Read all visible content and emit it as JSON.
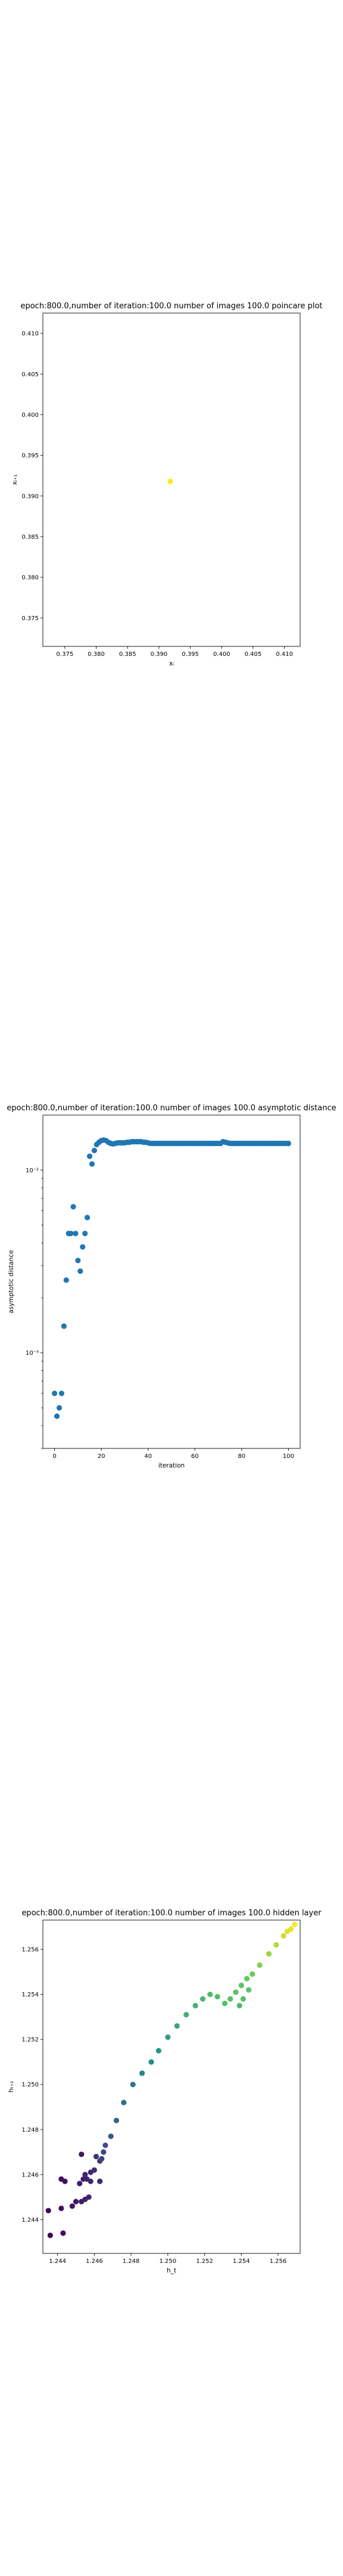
{
  "chart_data": [
    {
      "type": "scatter",
      "title": "epoch:800.0,number of iteration:100.0 number of images 100.0 poincare plot",
      "xlabel": "xᵢ",
      "ylabel": "xᵢ₊₁",
      "xlim": [
        0.3715,
        0.4125
      ],
      "ylim": [
        0.3715,
        0.4125
      ],
      "xticks": [
        "0.375",
        "0.380",
        "0.385",
        "0.390",
        "0.395",
        "0.400",
        "0.405",
        "0.410"
      ],
      "yticks": [
        "0.375",
        "0.380",
        "0.385",
        "0.390",
        "0.395",
        "0.400",
        "0.405",
        "0.410"
      ],
      "grid": false,
      "points": [
        {
          "x": 0.3918,
          "y": 0.3918,
          "color": "#fde725"
        }
      ]
    },
    {
      "type": "scatter",
      "title": "epoch:800.0,number of iteration:100.0  number of images 100.0 asymptotic distance",
      "xlabel": "iteration",
      "ylabel": "asymptotic distance",
      "yscale": "log",
      "xlim": [
        -5,
        105
      ],
      "ylim": [
        0.0003,
        0.02
      ],
      "xticks": [
        "0",
        "20",
        "40",
        "60",
        "80",
        "100"
      ],
      "yticks": [
        "10⁻³",
        "10⁻²"
      ],
      "ytick_values": [
        0.001,
        0.01
      ],
      "grid": false,
      "color": "#1f77b4",
      "x": [
        0,
        1,
        2,
        3,
        4,
        5,
        6,
        7,
        8,
        9,
        10,
        11,
        12,
        13,
        14,
        15,
        16,
        17,
        18,
        19,
        20,
        21,
        22,
        23,
        24,
        25,
        26,
        27,
        28,
        29,
        30,
        31,
        32,
        33,
        34,
        35,
        36,
        37,
        38,
        39,
        40,
        41,
        42,
        43,
        44,
        45,
        46,
        47,
        48,
        49,
        50,
        51,
        52,
        53,
        54,
        55,
        56,
        57,
        58,
        59,
        60,
        61,
        62,
        63,
        64,
        65,
        66,
        67,
        68,
        69,
        70,
        71,
        72,
        73,
        74,
        75,
        76,
        77,
        78,
        79,
        80,
        81,
        82,
        83,
        84,
        85,
        86,
        87,
        88,
        89,
        90,
        91,
        92,
        93,
        94,
        95,
        96,
        97,
        98,
        99,
        100
      ],
      "y": [
        0.0006,
        0.00045,
        0.0005,
        0.0006,
        0.0014,
        0.0025,
        0.0045,
        0.0045,
        0.0063,
        0.0045,
        0.0032,
        0.0028,
        0.0038,
        0.0045,
        0.0055,
        0.0119,
        0.0108,
        0.0128,
        0.0138,
        0.0142,
        0.0145,
        0.0146,
        0.0145,
        0.0142,
        0.014,
        0.0139,
        0.014,
        0.0141,
        0.0141,
        0.0141,
        0.0141,
        0.0142,
        0.0142,
        0.0143,
        0.0143,
        0.0143,
        0.0143,
        0.0143,
        0.0142,
        0.0142,
        0.0141,
        0.014,
        0.014,
        0.014,
        0.014,
        0.014,
        0.014,
        0.014,
        0.014,
        0.014,
        0.014,
        0.014,
        0.014,
        0.014,
        0.014,
        0.014,
        0.014,
        0.014,
        0.014,
        0.014,
        0.014,
        0.014,
        0.014,
        0.014,
        0.014,
        0.014,
        0.014,
        0.014,
        0.014,
        0.014,
        0.014,
        0.014,
        0.0143,
        0.0142,
        0.0141,
        0.014,
        0.014,
        0.014,
        0.014,
        0.014,
        0.014,
        0.014,
        0.014,
        0.014,
        0.014,
        0.014,
        0.014,
        0.014,
        0.014,
        0.014,
        0.014,
        0.014,
        0.014,
        0.014,
        0.014,
        0.014,
        0.014,
        0.014,
        0.014,
        0.014,
        0.014
      ]
    },
    {
      "type": "scatter",
      "title": "epoch:800.0,number of iteration:100.0  number of images 100.0 hidden layer",
      "xlabel": "h_t",
      "ylabel": "hₜ₊₁",
      "xlim": [
        1.2432,
        1.2572
      ],
      "ylim": [
        1.2425,
        1.2573
      ],
      "xticks": [
        "1.244",
        "1.246",
        "1.248",
        "1.250",
        "1.252",
        "1.254",
        "1.256"
      ],
      "yticks": [
        "1.244",
        "1.246",
        "1.248",
        "1.250",
        "1.252",
        "1.254",
        "1.256"
      ],
      "grid": false,
      "colormap": "viridis",
      "points": [
        {
          "x": 1.2436,
          "y": 1.2433,
          "c": 0.02
        },
        {
          "x": 1.2435,
          "y": 1.2444,
          "c": 0.03
        },
        {
          "x": 1.2442,
          "y": 1.2445,
          "c": 0.05
        },
        {
          "x": 1.2443,
          "y": 1.2434,
          "c": 0.03
        },
        {
          "x": 1.2442,
          "y": 1.2458,
          "c": 0.04
        },
        {
          "x": 1.2444,
          "y": 1.2457,
          "c": 0.05
        },
        {
          "x": 1.2448,
          "y": 1.2446,
          "c": 0.06
        },
        {
          "x": 1.245,
          "y": 1.2448,
          "c": 0.07
        },
        {
          "x": 1.2452,
          "y": 1.2456,
          "c": 0.08
        },
        {
          "x": 1.2453,
          "y": 1.2448,
          "c": 0.08
        },
        {
          "x": 1.2453,
          "y": 1.2469,
          "c": 0.07
        },
        {
          "x": 1.2454,
          "y": 1.2458,
          "c": 0.09
        },
        {
          "x": 1.2455,
          "y": 1.246,
          "c": 0.1
        },
        {
          "x": 1.2456,
          "y": 1.2458,
          "c": 0.11
        },
        {
          "x": 1.2455,
          "y": 1.2449,
          "c": 0.1
        },
        {
          "x": 1.2457,
          "y": 1.245,
          "c": 0.11
        },
        {
          "x": 1.2458,
          "y": 1.2457,
          "c": 0.12
        },
        {
          "x": 1.2458,
          "y": 1.2461,
          "c": 0.12
        },
        {
          "x": 1.246,
          "y": 1.2462,
          "c": 0.14
        },
        {
          "x": 1.2461,
          "y": 1.2468,
          "c": 0.16
        },
        {
          "x": 1.2463,
          "y": 1.2466,
          "c": 0.18
        },
        {
          "x": 1.2464,
          "y": 1.2467,
          "c": 0.2
        },
        {
          "x": 1.2465,
          "y": 1.247,
          "c": 0.22
        },
        {
          "x": 1.2466,
          "y": 1.2473,
          "c": 0.24
        },
        {
          "x": 1.2463,
          "y": 1.2457,
          "c": 0.13
        },
        {
          "x": 1.2469,
          "y": 1.2477,
          "c": 0.28
        },
        {
          "x": 1.2472,
          "y": 1.2484,
          "c": 0.32
        },
        {
          "x": 1.2476,
          "y": 1.2492,
          "c": 0.36
        },
        {
          "x": 1.2481,
          "y": 1.25,
          "c": 0.4
        },
        {
          "x": 1.2486,
          "y": 1.2505,
          "c": 0.44
        },
        {
          "x": 1.2491,
          "y": 1.251,
          "c": 0.48
        },
        {
          "x": 1.2495,
          "y": 1.2515,
          "c": 0.52
        },
        {
          "x": 1.25,
          "y": 1.2521,
          "c": 0.56
        },
        {
          "x": 1.2505,
          "y": 1.2526,
          "c": 0.6
        },
        {
          "x": 1.251,
          "y": 1.2531,
          "c": 0.63
        },
        {
          "x": 1.2515,
          "y": 1.2535,
          "c": 0.65
        },
        {
          "x": 1.2519,
          "y": 1.2538,
          "c": 0.67
        },
        {
          "x": 1.2523,
          "y": 1.254,
          "c": 0.69
        },
        {
          "x": 1.2527,
          "y": 1.2539,
          "c": 0.7
        },
        {
          "x": 1.2531,
          "y": 1.2536,
          "c": 0.7
        },
        {
          "x": 1.2534,
          "y": 1.2538,
          "c": 0.71
        },
        {
          "x": 1.2537,
          "y": 1.2541,
          "c": 0.72
        },
        {
          "x": 1.254,
          "y": 1.2544,
          "c": 0.73
        },
        {
          "x": 1.2543,
          "y": 1.2547,
          "c": 0.75
        },
        {
          "x": 1.2546,
          "y": 1.2549,
          "c": 0.77
        },
        {
          "x": 1.2539,
          "y": 1.2535,
          "c": 0.68
        },
        {
          "x": 1.2541,
          "y": 1.2538,
          "c": 0.71
        },
        {
          "x": 1.2544,
          "y": 1.2542,
          "c": 0.73
        },
        {
          "x": 1.255,
          "y": 1.2553,
          "c": 0.8
        },
        {
          "x": 1.2555,
          "y": 1.2558,
          "c": 0.84
        },
        {
          "x": 1.2559,
          "y": 1.2562,
          "c": 0.88
        },
        {
          "x": 1.2563,
          "y": 1.2566,
          "c": 0.92
        },
        {
          "x": 1.2565,
          "y": 1.2568,
          "c": 0.95
        },
        {
          "x": 1.2567,
          "y": 1.2569,
          "c": 0.97
        },
        {
          "x": 1.2569,
          "y": 1.2571,
          "c": 1.0
        }
      ]
    }
  ]
}
